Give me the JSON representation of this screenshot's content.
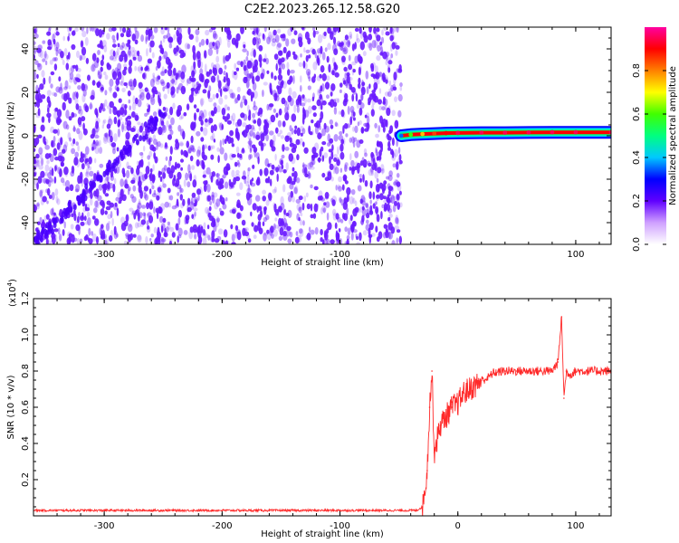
{
  "figure_title": "C2E2.2023.265.12.58.G20",
  "colors": {
    "scatter": "#6a1bff",
    "snr_line": "#ff2a2a",
    "colormap": [
      "#ffffff",
      "#cfa0ff",
      "#6000ff",
      "#0000ff",
      "#00c8ff",
      "#00ff80",
      "#40ff00",
      "#ffff00",
      "#ff8000",
      "#ff0000",
      "#ff00a0"
    ]
  },
  "chart_data": [
    {
      "type": "heatmap",
      "xlabel": "Height of straight line (km)",
      "ylabel": "Frequency (Hz)",
      "xlim": [
        -360,
        130
      ],
      "ylim": [
        -50,
        50
      ],
      "xticks": [
        -300,
        -200,
        -100,
        0,
        100
      ],
      "xtick_labels": [
        "-300",
        "-200",
        "-100",
        "0",
        "100"
      ],
      "yticks": [
        -40,
        -20,
        0,
        20,
        40
      ],
      "ytick_labels": [
        "-40",
        "-20",
        "0",
        "20",
        "40"
      ],
      "noise_region_x": [
        -360,
        -48
      ],
      "signal_trace": {
        "x": [
          -48,
          -40,
          -30,
          -20,
          -10,
          0,
          20,
          40,
          60,
          80,
          100,
          130
        ],
        "y": [
          0,
          0.5,
          0.8,
          1.0,
          1.2,
          1.3,
          1.4,
          1.4,
          1.5,
          1.6,
          1.6,
          1.6
        ],
        "amplitude": [
          0.35,
          0.6,
          0.75,
          0.85,
          0.9,
          0.95,
          0.95,
          0.95,
          0.95,
          0.95,
          0.95,
          0.95
        ]
      },
      "diagonal_streak": {
        "x": [
          -360,
          -250
        ],
        "y": [
          -50,
          10
        ]
      },
      "colorbar": {
        "label": "Normalized spectral amplitude",
        "range": [
          0,
          1
        ],
        "ticks": [
          0.0,
          0.2,
          0.4,
          0.6,
          0.8
        ],
        "tick_labels": [
          "0.0",
          "0.2",
          "0.4",
          "0.6",
          "0.8"
        ]
      }
    },
    {
      "type": "line",
      "xlabel": "Height of straight line (km)",
      "ylabel": "SNR (10 * v/v)",
      "y_multiplier_label": "(x10",
      "y_multiplier_exponent": "4",
      "y_multiplier_close": ")",
      "xlim": [
        -360,
        130
      ],
      "ylim": [
        0,
        1.2
      ],
      "xticks": [
        -300,
        -200,
        -100,
        0,
        100
      ],
      "xtick_labels": [
        "-300",
        "-200",
        "-100",
        "0",
        "100"
      ],
      "yticks": [
        0.2,
        0.4,
        0.6,
        0.8,
        1.0,
        1.2
      ],
      "ytick_labels": [
        "0.2",
        "0.4",
        "0.6",
        "0.8",
        "1.0",
        "1.2"
      ],
      "series": [
        {
          "x": [
            -360,
            -300,
            -250,
            -200,
            -150,
            -100,
            -50,
            -35,
            -30,
            -26,
            -24,
            -22,
            -20,
            -15,
            -10,
            -5,
            0,
            5,
            10,
            15,
            20,
            25,
            30,
            40,
            50,
            60,
            70,
            80,
            85,
            88,
            90,
            92,
            95,
            100,
            110,
            120,
            130
          ],
          "y": [
            0.03,
            0.03,
            0.03,
            0.03,
            0.03,
            0.03,
            0.03,
            0.03,
            0.05,
            0.25,
            0.6,
            0.8,
            0.35,
            0.5,
            0.55,
            0.6,
            0.62,
            0.68,
            0.7,
            0.72,
            0.75,
            0.76,
            0.79,
            0.8,
            0.8,
            0.8,
            0.8,
            0.8,
            0.85,
            1.1,
            0.65,
            0.8,
            0.78,
            0.8,
            0.8,
            0.8,
            0.8
          ]
        }
      ]
    }
  ]
}
